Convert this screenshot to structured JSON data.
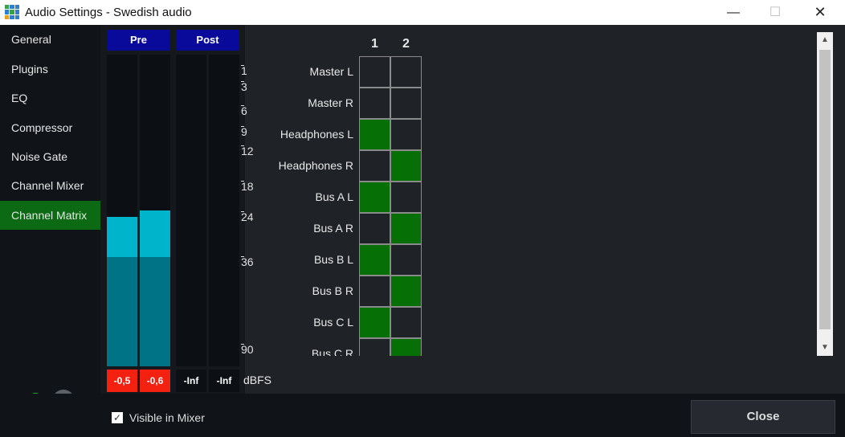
{
  "window": {
    "title": "Audio Settings - Swedish audio",
    "minimize": "—",
    "maximize": "☐",
    "close": "✕"
  },
  "sidebar": {
    "items": [
      {
        "label": "General"
      },
      {
        "label": "Plugins"
      },
      {
        "label": "EQ"
      },
      {
        "label": "Compressor"
      },
      {
        "label": "Noise Gate"
      },
      {
        "label": "Channel Mixer"
      },
      {
        "label": "Channel Matrix",
        "selected": true
      }
    ]
  },
  "meters": {
    "pre_label": "Pre",
    "post_label": "Post",
    "unit": "dBFS",
    "channels": [
      {
        "value": "-0,5",
        "clip": true,
        "level_pct": 48,
        "peak_pct": 35
      },
      {
        "value": "-0,6",
        "clip": true,
        "level_pct": 50,
        "peak_pct": 35
      },
      {
        "value": "-Inf",
        "clip": false,
        "level_pct": 0,
        "peak_pct": 0
      },
      {
        "value": "-Inf",
        "clip": false,
        "level_pct": 0,
        "peak_pct": 0
      }
    ],
    "scale": [
      "1",
      "3",
      "6",
      "9",
      "12",
      "18",
      "24",
      "36",
      "90"
    ]
  },
  "matrix": {
    "columns": [
      "1",
      "2"
    ],
    "rows": [
      {
        "label": "Master L",
        "on": [
          false,
          false
        ]
      },
      {
        "label": "Master R",
        "on": [
          false,
          false
        ]
      },
      {
        "label": "Headphones L",
        "on": [
          true,
          false
        ]
      },
      {
        "label": "Headphones R",
        "on": [
          false,
          true
        ]
      },
      {
        "label": "Bus A L",
        "on": [
          true,
          false
        ]
      },
      {
        "label": "Bus A R",
        "on": [
          false,
          true
        ]
      },
      {
        "label": "Bus B L",
        "on": [
          true,
          false
        ]
      },
      {
        "label": "Bus B R",
        "on": [
          false,
          true
        ]
      },
      {
        "label": "Bus C L",
        "on": [
          true,
          false
        ]
      },
      {
        "label": "Bus C R",
        "on": [
          false,
          true
        ]
      }
    ]
  },
  "footer": {
    "visible_in_mixer_label": "Visible in Mixer",
    "visible_in_mixer": true,
    "close_label": "Close"
  },
  "colors": {
    "selected": "#0b6a13",
    "header": "#0a0a9a",
    "meter_peak": "#00b4cc",
    "meter_level": "#007486",
    "clip": "#f42010",
    "matrix_on": "#067006"
  }
}
